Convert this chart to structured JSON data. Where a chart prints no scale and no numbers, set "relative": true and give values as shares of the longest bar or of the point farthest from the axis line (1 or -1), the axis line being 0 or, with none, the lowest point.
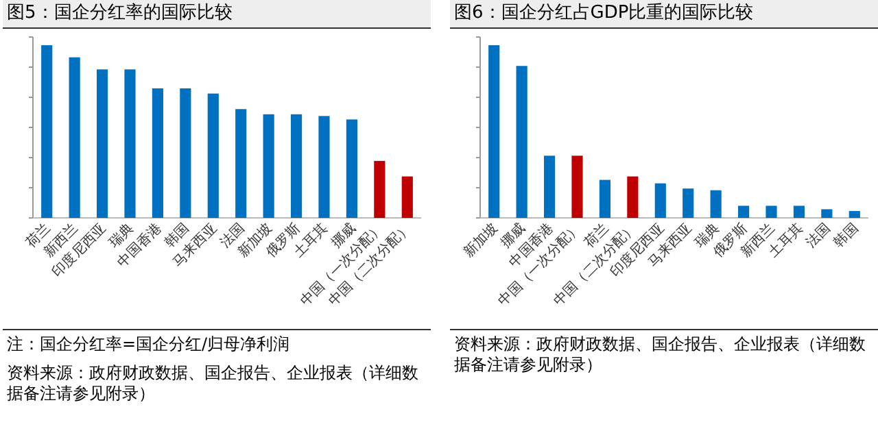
{
  "chart_data": [
    {
      "type": "bar",
      "title": "图5：国企分红率的国际比较",
      "relative": true,
      "categories": [
        "荷兰",
        "新西兰",
        "印度尼西亚",
        "瑞典",
        "中国香港",
        "韩国",
        "马来西亚",
        "法国",
        "新加坡",
        "俄罗斯",
        "土耳其",
        "挪威",
        "中国（一次分配）",
        "中国（二次分配）"
      ],
      "values": [
        1,
        0.93,
        0.86,
        0.86,
        0.75,
        0.75,
        0.72,
        0.63,
        0.6,
        0.6,
        0.59,
        0.57,
        0.33,
        0.24
      ],
      "colors": [
        "#0070c0",
        "#0070c0",
        "#0070c0",
        "#0070c0",
        "#0070c0",
        "#0070c0",
        "#0070c0",
        "#0070c0",
        "#0070c0",
        "#0070c0",
        "#0070c0",
        "#0070c0",
        "#c00000",
        "#c00000"
      ],
      "annotations": [
        "注：国企分红率=国企分红/归母净利润",
        "资料来源：政府财政数据、国企报告、企业报表（详细数据备注请参见附录）"
      ]
    },
    {
      "type": "bar",
      "title": "图6：国企分红占GDP比重的国际比较",
      "relative": true,
      "categories": [
        "新加坡",
        "挪威",
        "中国香港",
        "中国（一次分配）",
        "荷兰",
        "中国（二次分配）",
        "印度尼西亚",
        "马来西亚",
        "瑞典",
        "俄罗斯",
        "新西兰",
        "土耳其",
        "法国",
        "韩国"
      ],
      "values": [
        1,
        0.88,
        0.36,
        0.36,
        0.22,
        0.24,
        0.2,
        0.17,
        0.16,
        0.07,
        0.07,
        0.07,
        0.05,
        0.04
      ],
      "colors": [
        "#0070c0",
        "#0070c0",
        "#0070c0",
        "#c00000",
        "#0070c0",
        "#c00000",
        "#0070c0",
        "#0070c0",
        "#0070c0",
        "#0070c0",
        "#0070c0",
        "#0070c0",
        "#0070c0",
        "#0070c0"
      ],
      "annotations": [
        "资料来源：政府财政数据、国企报告、企业报表（详细数据备注请参见附录）"
      ]
    }
  ]
}
